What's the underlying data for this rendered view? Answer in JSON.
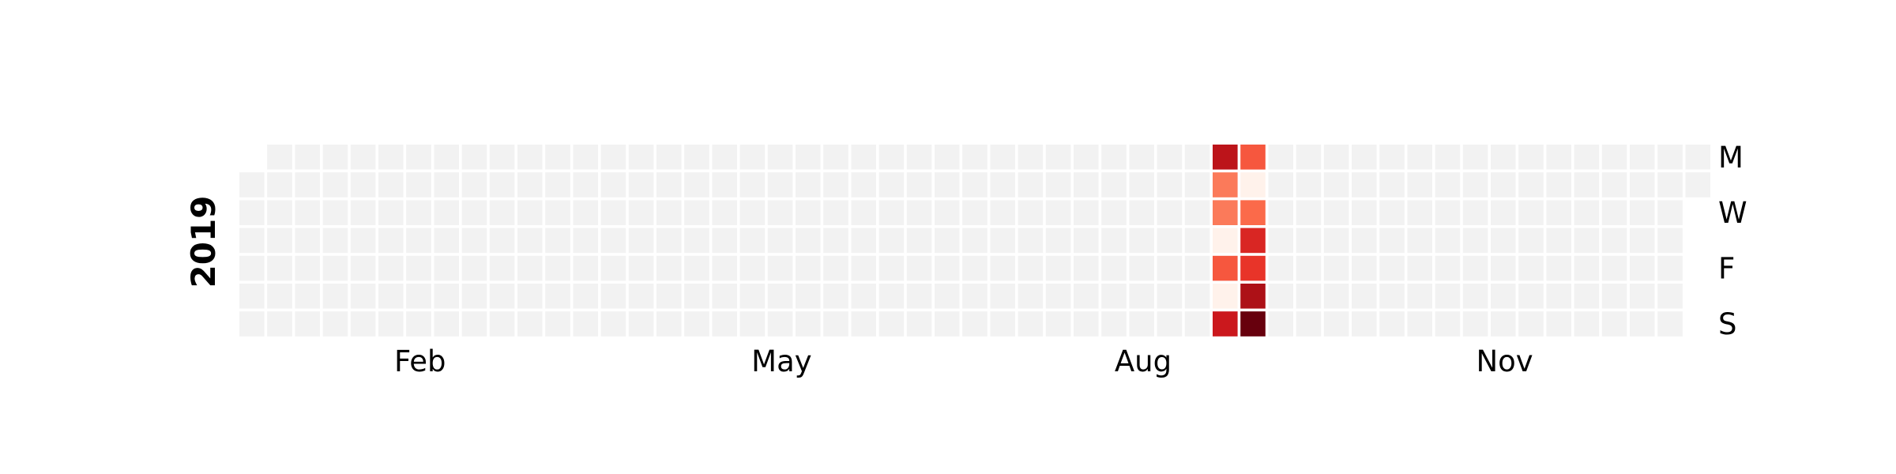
{
  "chart_data": {
    "type": "heatmap",
    "year": "2019",
    "colormap": "Reds",
    "empty_color": "#f2f2f2",
    "month_labels": [
      {
        "label": "Feb",
        "week": 6.5
      },
      {
        "label": "May",
        "week": 19.5
      },
      {
        "label": "Aug",
        "week": 32.5
      },
      {
        "label": "Nov",
        "week": 45.5
      }
    ],
    "day_labels": [
      {
        "label": "M",
        "day": 0
      },
      {
        "label": "W",
        "day": 2
      },
      {
        "label": "F",
        "day": 4
      },
      {
        "label": "S",
        "day": 6
      }
    ],
    "first_week_start_day": 1,
    "last_week_end_day": 1,
    "num_weeks": 53,
    "values_range": [
      0,
      1
    ],
    "active_days": [
      {
        "week": 35,
        "day": 0,
        "value": 0.8
      },
      {
        "week": 35,
        "day": 1,
        "value": 0.45
      },
      {
        "week": 35,
        "day": 2,
        "value": 0.45
      },
      {
        "week": 35,
        "day": 3,
        "value": 0.02
      },
      {
        "week": 35,
        "day": 4,
        "value": 0.55
      },
      {
        "week": 35,
        "day": 5,
        "value": 0.02
      },
      {
        "week": 35,
        "day": 6,
        "value": 0.75
      },
      {
        "week": 36,
        "day": 0,
        "value": 0.55
      },
      {
        "week": 36,
        "day": 1,
        "value": 0.02
      },
      {
        "week": 36,
        "day": 2,
        "value": 0.5
      },
      {
        "week": 36,
        "day": 3,
        "value": 0.7
      },
      {
        "week": 36,
        "day": 4,
        "value": 0.65
      },
      {
        "week": 36,
        "day": 5,
        "value": 0.85
      },
      {
        "week": 36,
        "day": 6,
        "value": 1.0
      }
    ]
  }
}
